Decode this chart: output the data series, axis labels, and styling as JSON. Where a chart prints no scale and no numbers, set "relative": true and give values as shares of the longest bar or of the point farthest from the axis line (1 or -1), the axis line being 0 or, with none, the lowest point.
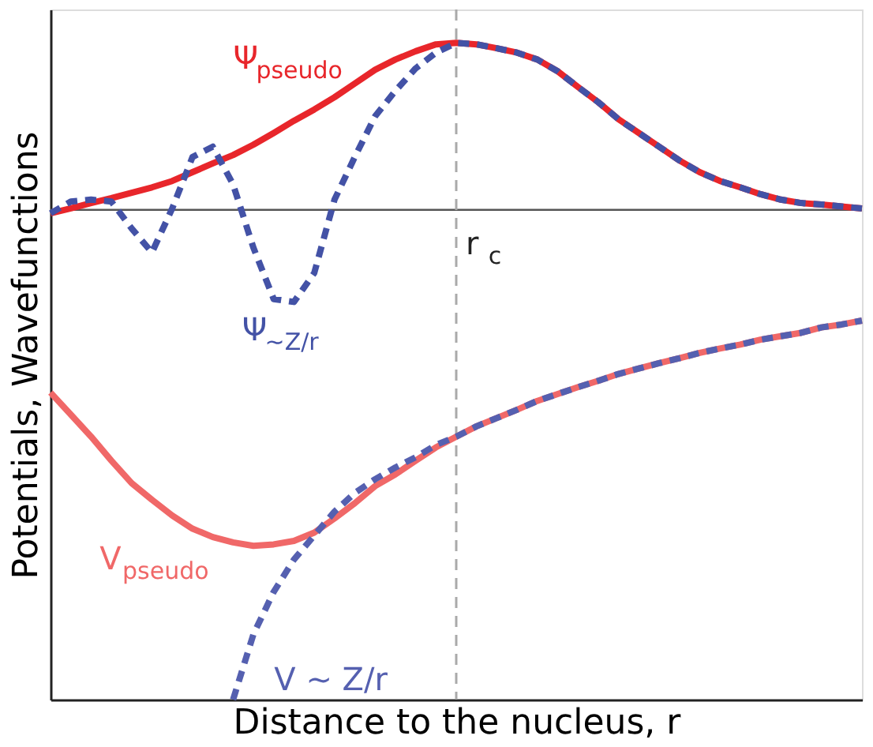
{
  "chart_data": {
    "type": "line",
    "relative": true,
    "xlabel": "Distance to the nucleus, r",
    "ylabel": "Potentials, Wavefunctions",
    "grid": false,
    "tick_labels": false,
    "categories": [
      null,
      null,
      null,
      null,
      null,
      null,
      null,
      null,
      null,
      null,
      null,
      null,
      null,
      null,
      null,
      null,
      null,
      null,
      null,
      null,
      null,
      null,
      null,
      null,
      null,
      null,
      null,
      null,
      null,
      null,
      null,
      null,
      null,
      null,
      null,
      null,
      null,
      null,
      null,
      null,
      null
    ],
    "series": [
      {
        "name": "Ψ$_{pseudo}$",
        "color": "#e8262b",
        "line_style": "solid",
        "values": [
          -0.007,
          0.003,
          0.014,
          0.024,
          0.035,
          0.046,
          0.059,
          0.077,
          0.095,
          0.112,
          0.133,
          0.157,
          0.182,
          0.205,
          0.23,
          0.258,
          0.286,
          0.307,
          0.324,
          0.338,
          0.341,
          0.338,
          0.33,
          0.321,
          0.307,
          0.283,
          0.251,
          0.22,
          0.185,
          0.157,
          0.129,
          0.101,
          0.077,
          0.059,
          0.046,
          0.032,
          0.021,
          0.014,
          0.011,
          0.007,
          0.003
        ]
      },
      {
        "name": "Ψ$_{∼Z/r}$",
        "color": "#4352a6",
        "line_style": "dashed",
        "values": [
          -0.007,
          0.017,
          0.021,
          0.017,
          -0.038,
          -0.087,
          0.003,
          0.108,
          0.129,
          0.052,
          -0.077,
          -0.182,
          -0.188,
          -0.129,
          0.021,
          0.108,
          0.191,
          0.243,
          0.289,
          0.321,
          0.341,
          0.338,
          0.33,
          0.321,
          0.307,
          0.283,
          0.251,
          0.22,
          0.185,
          0.157,
          0.129,
          0.101,
          0.077,
          0.059,
          0.046,
          0.032,
          0.021,
          0.014,
          0.011,
          0.007,
          0.003
        ]
      },
      {
        "name": "V$_{pseudo}$",
        "color": "#f06868",
        "line_style": "solid",
        "values": [
          -0.373,
          -0.418,
          -0.463,
          -0.512,
          -0.558,
          -0.592,
          -0.624,
          -0.651,
          -0.668,
          -0.679,
          -0.686,
          -0.683,
          -0.676,
          -0.659,
          -0.63,
          -0.599,
          -0.564,
          -0.54,
          -0.512,
          -0.485,
          -0.463,
          -0.442,
          -0.425,
          -0.408,
          -0.39,
          -0.376,
          -0.362,
          -0.349,
          -0.335,
          -0.324,
          -0.313,
          -0.303,
          -0.292,
          -0.283,
          -0.275,
          -0.265,
          -0.258,
          -0.251,
          -0.24,
          -0.234,
          -0.226
        ]
      },
      {
        "name": "V ∼ Z/r",
        "color": "#5560b0",
        "line_style": "dashed",
        "values": [
          null,
          null,
          null,
          null,
          null,
          null,
          null,
          null,
          null,
          -1,
          -0.867,
          -0.78,
          -0.714,
          -0.665,
          -0.616,
          -0.578,
          -0.55,
          -0.526,
          -0.505,
          -0.48,
          -0.463,
          -0.442,
          -0.425,
          -0.408,
          -0.39,
          -0.376,
          -0.362,
          -0.349,
          -0.335,
          -0.324,
          -0.313,
          -0.303,
          -0.292,
          -0.283,
          -0.275,
          -0.265,
          -0.258,
          -0.251,
          -0.24,
          -0.234,
          -0.226
        ]
      }
    ],
    "annotations": [
      "r$_{c}$"
    ]
  }
}
